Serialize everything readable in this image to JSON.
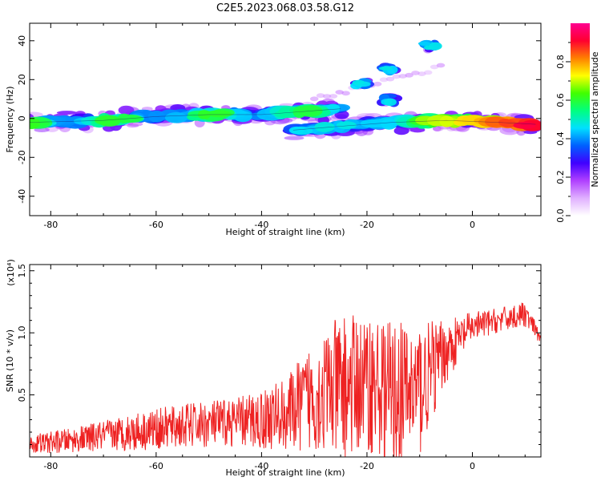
{
  "title": "C2E5.2023.068.03.58.G12",
  "chart_data": [
    {
      "type": "heatmap",
      "name": "spectrogram",
      "xlabel": "Height of straight line (km)",
      "ylabel": "Frequency (Hz)",
      "xlim": [
        -84,
        13
      ],
      "ylim": [
        -50,
        49
      ],
      "xticks": [
        -80,
        -60,
        -40,
        -20,
        0
      ],
      "yticks": [
        -40,
        -20,
        0,
        20,
        40
      ],
      "colorbar": {
        "label": "Normalized spectral amplitude",
        "range": [
          0,
          1
        ],
        "ticks": [
          "0.0",
          "0.2",
          "0.4",
          "0.6",
          "0.8"
        ],
        "colors": [
          "#ffffff",
          "#e0b0ff",
          "#b040ff",
          "#4000ff",
          "#0060ff",
          "#00e0ff",
          "#00ff80",
          "#40ff00",
          "#ffff00",
          "#ff8000",
          "#ff0030",
          "#ff0090"
        ]
      },
      "ridges": [
        {
          "x": [
            -84,
            -70,
            -60,
            -50,
            -40,
            -30,
            -25
          ],
          "y": [
            -2,
            -1,
            1,
            2,
            2,
            4,
            5
          ]
        },
        {
          "x": [
            -34,
            -25,
            -15,
            -5,
            5,
            12
          ],
          "y": [
            -6,
            -4,
            -2,
            -1,
            -2,
            -3
          ]
        }
      ],
      "features": [
        {
          "x": -16,
          "y": 26
        },
        {
          "x": -16,
          "y": 10
        },
        {
          "x": -21,
          "y": 18
        },
        {
          "x": -8,
          "y": 37
        }
      ]
    },
    {
      "type": "line",
      "name": "snr",
      "xlabel": "Height of straight line (km)",
      "ylabel": "SNR (10 * v/v)",
      "multiplier": "(x10⁴)",
      "xlim": [
        -84,
        13
      ],
      "ylim": [
        0,
        1.55
      ],
      "xticks": [
        -80,
        -60,
        -40,
        -20,
        0
      ],
      "yticks": [
        0.5,
        1.0,
        1.5
      ],
      "color": "#ee2222",
      "envelope": {
        "x": [
          -84,
          -75,
          -65,
          -55,
          -45,
          -40,
          -35,
          -30,
          -25,
          -20,
          -15,
          -10,
          -5,
          0,
          5,
          10,
          13
        ],
        "y_center": [
          0.1,
          0.14,
          0.2,
          0.25,
          0.28,
          0.3,
          0.35,
          0.5,
          0.55,
          0.6,
          0.5,
          0.55,
          0.85,
          1.05,
          1.1,
          1.15,
          0.95
        ],
        "spread": [
          0.08,
          0.1,
          0.15,
          0.18,
          0.2,
          0.25,
          0.3,
          0.45,
          0.6,
          0.55,
          0.6,
          0.55,
          0.25,
          0.12,
          0.1,
          0.1,
          0.05
        ]
      }
    }
  ],
  "tick_labels": {
    "x": [
      "-80",
      "-60",
      "-40",
      "-20",
      "0"
    ],
    "y_top": [
      "-40",
      "-20",
      "0",
      "20",
      "40"
    ],
    "y_bottom": [
      "0.5",
      "1.0",
      "1.5"
    ]
  }
}
